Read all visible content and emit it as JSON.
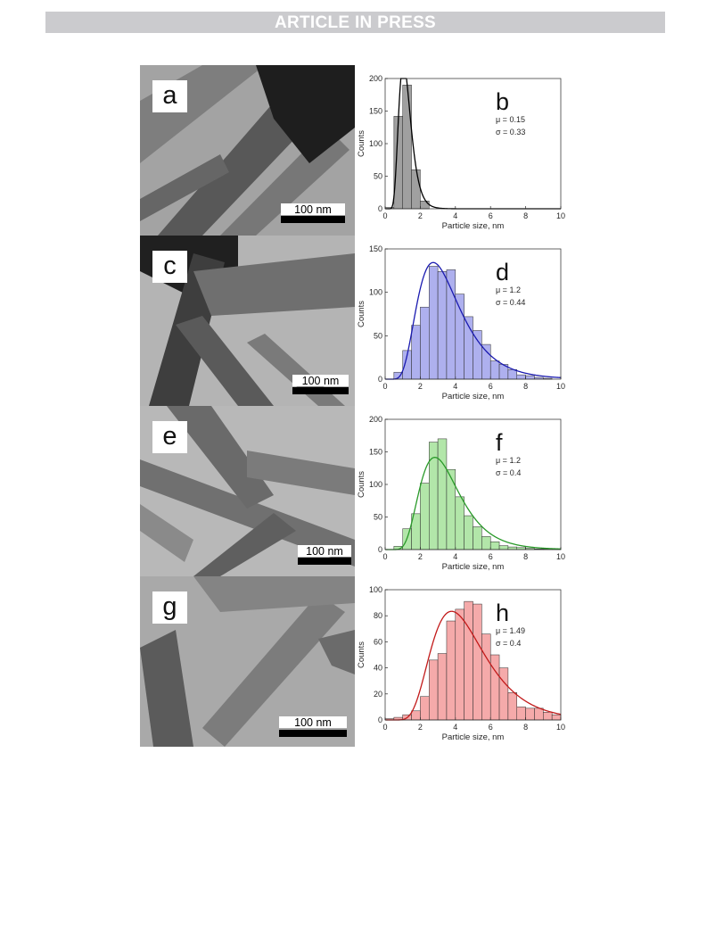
{
  "header": {
    "banner": "ARTICLE IN PRESS"
  },
  "scale_label": "100 nm",
  "panels": [
    {
      "tem_label": "a",
      "hist_label": "b",
      "mu": "μ = 0.15",
      "sigma": "σ = 0.33",
      "color": "#a0a0a0",
      "line_color": "#000000"
    },
    {
      "tem_label": "c",
      "hist_label": "d",
      "mu": "μ = 1.2",
      "sigma": "σ = 0.44",
      "color": "#aeb0ee",
      "line_color": "#1a1ab0"
    },
    {
      "tem_label": "e",
      "hist_label": "f",
      "mu": "μ = 1.2",
      "sigma": "σ = 0.4",
      "color": "#b2e6a9",
      "line_color": "#2a9a2a"
    },
    {
      "tem_label": "g",
      "hist_label": "h",
      "mu": "μ = 1.49",
      "sigma": "σ = 0.4",
      "color": "#f5aaaa",
      "line_color": "#c21a1a"
    }
  ],
  "chart_data": [
    {
      "type": "bar",
      "title": "",
      "xlabel": "Particle size, nm",
      "ylabel": "Counts",
      "xlim": [
        0,
        10
      ],
      "ylim": [
        0,
        200
      ],
      "xticks": [
        0,
        2,
        4,
        6,
        8,
        10
      ],
      "yticks": [
        0,
        50,
        100,
        150,
        200
      ],
      "bin_width": 0.5,
      "bin_starts": [
        0,
        0.5,
        1.0,
        1.5,
        2.0
      ],
      "values": [
        2,
        142,
        190,
        60,
        12
      ],
      "fit_curve": "lognormal",
      "mu": 0.15,
      "sigma": 0.33
    },
    {
      "type": "bar",
      "title": "",
      "xlabel": "Particle size, nm",
      "ylabel": "Counts",
      "xlim": [
        0,
        10
      ],
      "ylim": [
        0,
        150
      ],
      "xticks": [
        0,
        2,
        4,
        6,
        8,
        10
      ],
      "yticks": [
        0,
        50,
        100,
        150
      ],
      "bin_width": 0.5,
      "bin_starts": [
        0,
        0.5,
        1.0,
        1.5,
        2.0,
        2.5,
        3.0,
        3.5,
        4.0,
        4.5,
        5.0,
        5.5,
        6.0,
        6.5,
        7.0,
        7.5,
        8.0,
        8.5,
        9.0,
        9.5
      ],
      "values": [
        0,
        8,
        33,
        62,
        83,
        130,
        124,
        126,
        98,
        72,
        56,
        40,
        21,
        17,
        11,
        5,
        4,
        2,
        1,
        0
      ],
      "fit_curve": "lognormal",
      "mu": 1.2,
      "sigma": 0.44
    },
    {
      "type": "bar",
      "title": "",
      "xlabel": "Particle size, nm",
      "ylabel": "Counts",
      "xlim": [
        0,
        10
      ],
      "ylim": [
        0,
        200
      ],
      "xticks": [
        0,
        2,
        4,
        6,
        8,
        10
      ],
      "yticks": [
        0,
        50,
        100,
        150,
        200
      ],
      "bin_width": 0.5,
      "bin_starts": [
        0.5,
        1.0,
        1.5,
        2.0,
        2.5,
        3.0,
        3.5,
        4.0,
        4.5,
        5.0,
        5.5,
        6.0,
        6.5,
        7.0,
        7.5,
        8.0,
        8.5,
        9.0,
        9.5
      ],
      "values": [
        5,
        32,
        55,
        102,
        165,
        170,
        123,
        81,
        52,
        35,
        20,
        12,
        6,
        4,
        3,
        2,
        1,
        1,
        1
      ],
      "fit_curve": "lognormal",
      "mu": 1.2,
      "sigma": 0.4
    },
    {
      "type": "bar",
      "title": "",
      "xlabel": "Particle size, nm",
      "ylabel": "Counts",
      "xlim": [
        0,
        10
      ],
      "ylim": [
        0,
        100
      ],
      "xticks": [
        0,
        2,
        4,
        6,
        8,
        10
      ],
      "yticks": [
        0,
        20,
        40,
        60,
        80,
        100
      ],
      "bin_width": 0.5,
      "bin_starts": [
        0,
        0.5,
        1.0,
        1.5,
        2.0,
        2.5,
        3.0,
        3.5,
        4.0,
        4.5,
        5.0,
        5.5,
        6.0,
        6.5,
        7.0,
        7.5,
        8.0,
        8.5,
        9.0,
        9.5
      ],
      "values": [
        1,
        2,
        4,
        7,
        18,
        46,
        51,
        76,
        85,
        91,
        89,
        66,
        50,
        40,
        21,
        10,
        9,
        9,
        6,
        4
      ],
      "fit_curve": "lognormal",
      "mu": 1.49,
      "sigma": 0.4
    }
  ]
}
